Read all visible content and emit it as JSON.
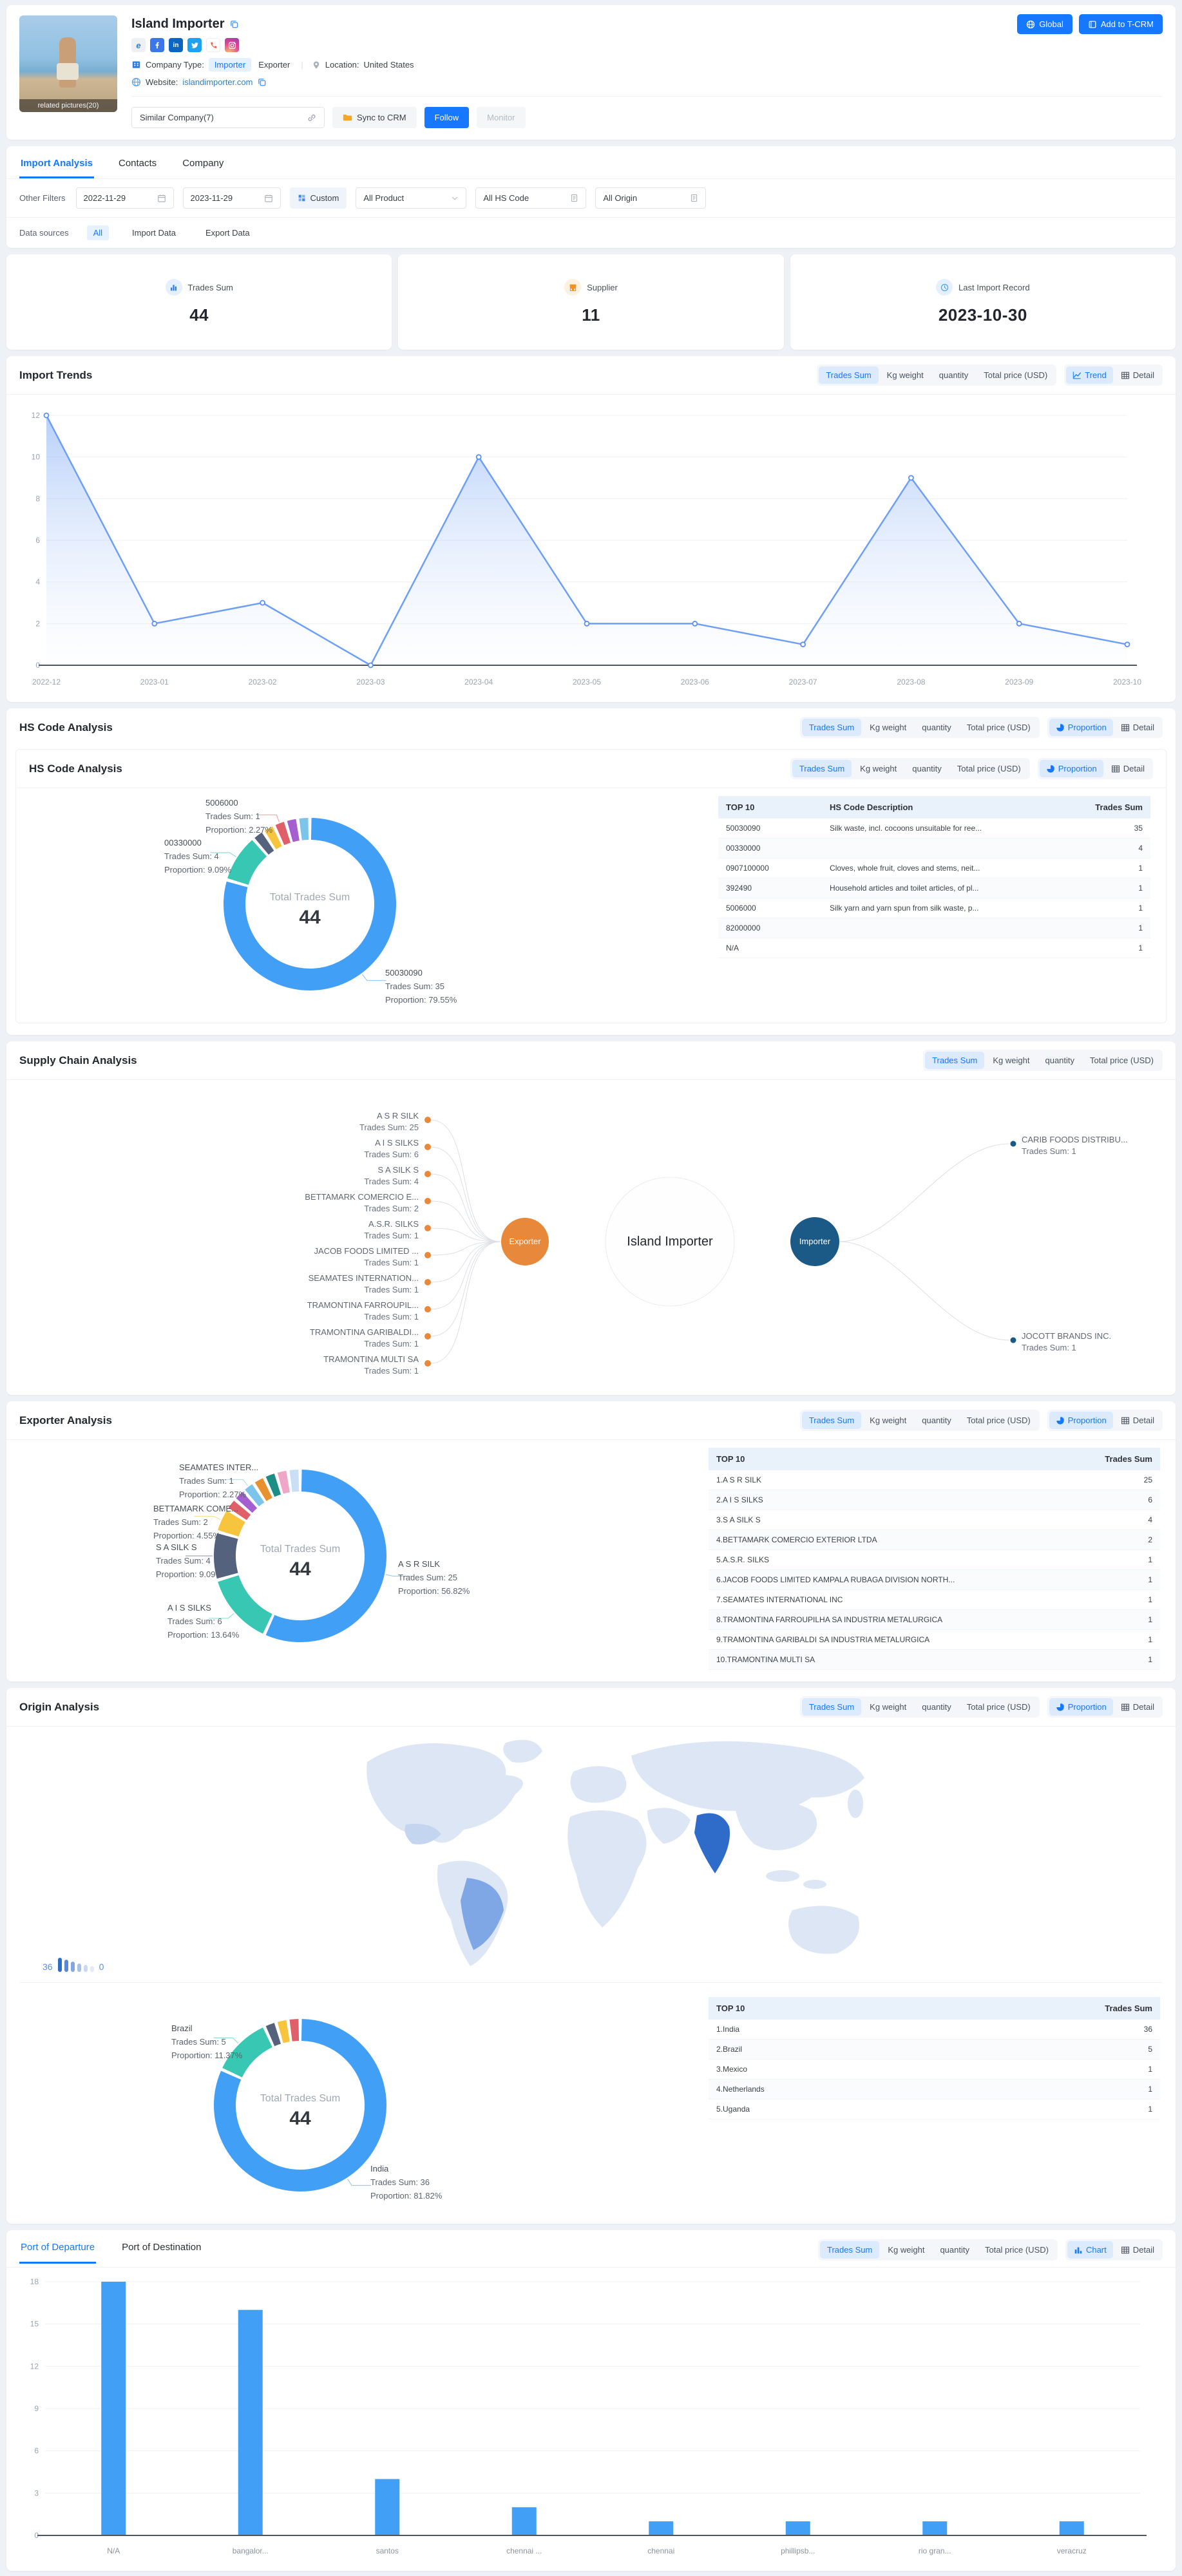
{
  "header": {
    "company_name": "Island Importer",
    "photo_caption": "related pictures(20)",
    "company_type_label": "Company Type:",
    "company_type_importer": "Importer",
    "company_type_exporter": "Exporter",
    "location_label": "Location:",
    "location": "United States",
    "website_label": "Website:",
    "website": "islandimporter.com",
    "similar_company": "Similar Company(7)",
    "sync_to_crm": "Sync to CRM",
    "follow": "Follow",
    "monitor": "Monitor",
    "global_btn": "Global",
    "add_to_tcrm_btn": "Add to T-CRM",
    "social_icons": [
      "website-icon",
      "facebook-icon",
      "linkedin-icon",
      "twitter-icon",
      "phone-icon",
      "instagram-icon"
    ]
  },
  "tabs": [
    "Import Analysis",
    "Contacts",
    "Company"
  ],
  "filters": {
    "other_filters_label": "Other Filters",
    "date_from": "2022-11-29",
    "date_to": "2023-11-29",
    "custom": "Custom",
    "all_product": "All Product",
    "all_hs_code": "All HS Code",
    "all_origin": "All Origin",
    "data_sources_label": "Data sources",
    "data_sources": [
      "All",
      "Import Data",
      "Export Data"
    ]
  },
  "stats": [
    {
      "label": "Trades Sum",
      "value": "44"
    },
    {
      "label": "Supplier",
      "value": "11"
    },
    {
      "label": "Last Import Record",
      "value": "2023-10-30"
    }
  ],
  "metric_buttons": [
    "Trades Sum",
    "Kg weight",
    "quantity",
    "Total price (USD)"
  ],
  "view_labels": {
    "trend": "Trend",
    "detail": "Detail",
    "proportion": "Proportion",
    "chart": "Chart"
  },
  "sections": {
    "import_trends": {
      "title": "Import Trends"
    },
    "hs_code": {
      "title": "HS Code Analysis"
    },
    "supply_chain": {
      "title": "Supply Chain Analysis"
    },
    "exporter": {
      "title": "Exporter Analysis"
    },
    "origin": {
      "title": "Origin Analysis"
    }
  },
  "port_tabs": [
    "Port of Departure",
    "Port of Destination"
  ],
  "labels": {
    "trades_sum_prefix": "Trades Sum: ",
    "proportion_prefix": "Proportion: "
  },
  "map_legend": {
    "max": "36",
    "min": "0"
  },
  "supply_chain": {
    "exporter_node": "Exporter",
    "importer_node": "Importer",
    "center": "Island Importer",
    "left": [
      {
        "name": "A S R SILK",
        "value": 25
      },
      {
        "name": "A I S SILKS",
        "value": 6
      },
      {
        "name": "S A SILK S",
        "value": 4
      },
      {
        "name": "BETTAMARK COMERCIO E...",
        "value": 2
      },
      {
        "name": "A.S.R. SILKS",
        "value": 1
      },
      {
        "name": "JACOB FOODS LIMITED ...",
        "value": 1
      },
      {
        "name": "SEAMATES INTERNATION...",
        "value": 1
      },
      {
        "name": "TRAMONTINA FARROUPIL...",
        "value": 1
      },
      {
        "name": "TRAMONTINA GARIBALDI...",
        "value": 1
      },
      {
        "name": "TRAMONTINA MULTI SA",
        "value": 1
      }
    ],
    "right": [
      {
        "name": "CARIB FOODS DISTRIBU...",
        "value": 1
      },
      {
        "name": "JOCOTT BRANDS INC.",
        "value": 1
      }
    ]
  },
  "hs_table": {
    "headers": [
      "TOP 10",
      "HS Code Description",
      "Trades Sum"
    ],
    "rows": [
      [
        "50030090",
        "Silk waste, incl. cocoons unsuitable for ree...",
        "35"
      ],
      [
        "00330000",
        "",
        "4"
      ],
      [
        "0907100000",
        "Cloves, whole fruit, cloves and stems, neit...",
        "1"
      ],
      [
        "392490",
        "Household articles and toilet articles, of pl...",
        "1"
      ],
      [
        "5006000",
        "Silk yarn and yarn spun from silk waste, p...",
        "1"
      ],
      [
        "82000000",
        "",
        "1"
      ],
      [
        "N/A",
        "",
        "1"
      ]
    ]
  },
  "exporter_table": {
    "headers": [
      "TOP 10",
      "Trades Sum"
    ],
    "rows": [
      [
        "1.A S R SILK",
        "25"
      ],
      [
        "2.A I S SILKS",
        "6"
      ],
      [
        "3.S A SILK S",
        "4"
      ],
      [
        "4.BETTAMARK COMERCIO EXTERIOR LTDA",
        "2"
      ],
      [
        "5.A.S.R. SILKS",
        "1"
      ],
      [
        "6.JACOB FOODS LIMITED KAMPALA RUBAGA DIVISION NORTH...",
        "1"
      ],
      [
        "7.SEAMATES INTERNATIONAL INC",
        "1"
      ],
      [
        "8.TRAMONTINA FARROUPILHA SA INDUSTRIA METALURGICA",
        "1"
      ],
      [
        "9.TRAMONTINA GARIBALDI SA INDUSTRIA METALURGICA",
        "1"
      ],
      [
        "10.TRAMONTINA MULTI SA",
        "1"
      ]
    ]
  },
  "origin_table": {
    "headers": [
      "TOP 10",
      "Trades Sum"
    ],
    "rows": [
      [
        "1.India",
        "36"
      ],
      [
        "2.Brazil",
        "5"
      ],
      [
        "3.Mexico",
        "1"
      ],
      [
        "4.Netherlands",
        "1"
      ],
      [
        "5.Uganda",
        "1"
      ]
    ]
  },
  "colors": {
    "primary": "#1677ff",
    "line": "#6e9ff7",
    "bar": "#41a0f5",
    "supply_exporter": "#e8883a",
    "supply_importer": "#1b5a86",
    "map_high": "#2f6bc9",
    "map_mid": "#7fa7e6",
    "map_base": "#dde6f4",
    "donut_palette": [
      "#41a0f5",
      "#38c7b2",
      "#55627d",
      "#f7c53d",
      "#e0606a",
      "#a45fd0",
      "#7cc4ea",
      "#e8912d",
      "#1d8d85",
      "#f0a6c6",
      "#c9dff5"
    ]
  },
  "chart_data": [
    {
      "id": "import_trends",
      "type": "line",
      "x": [
        "2022-12",
        "2023-01",
        "2023-02",
        "2023-03",
        "2023-04",
        "2023-05",
        "2023-06",
        "2023-07",
        "2023-08",
        "2023-09",
        "2023-10"
      ],
      "values": [
        12,
        2,
        3,
        0,
        10,
        2,
        2,
        1,
        9,
        2,
        1
      ],
      "ylim": [
        0,
        12
      ],
      "yticks": [
        0,
        2,
        4,
        6,
        8,
        10,
        12
      ],
      "grid": true,
      "legend_position": "none"
    },
    {
      "id": "hs_code",
      "type": "donut",
      "center_label": "Total Trades Sum",
      "center_value": "44",
      "slices": [
        {
          "name": "50030090",
          "value": 35,
          "proportion": "79.55%"
        },
        {
          "name": "00330000",
          "value": 4,
          "proportion": "9.09%"
        },
        {
          "name": "0907100000",
          "value": 1
        },
        {
          "name": "392490",
          "value": 1
        },
        {
          "name": "5006000",
          "value": 1,
          "proportion": "2.27%"
        },
        {
          "name": "82000000",
          "value": 1
        },
        {
          "name": "N/A",
          "value": 1
        }
      ]
    },
    {
      "id": "exporter",
      "type": "donut",
      "center_label": "Total Trades Sum",
      "center_value": "44",
      "slices": [
        {
          "name": "A S R SILK",
          "value": 25,
          "proportion": "56.82%"
        },
        {
          "name": "A I S SILKS",
          "value": 6,
          "proportion": "13.64%"
        },
        {
          "name": "S A SILK S",
          "value": 4,
          "proportion": "9.09%"
        },
        {
          "name": "BETTAMARK COME...",
          "value": 2,
          "proportion": "4.55%"
        },
        {
          "name": "A.S.R. SILKS",
          "value": 1
        },
        {
          "name": "JACOB FOODS LIMITED...",
          "value": 1
        },
        {
          "name": "SEAMATES INTER...",
          "value": 1,
          "proportion": "2.27%"
        },
        {
          "name": "TRAMONTINA FARROUPIL...",
          "value": 1
        },
        {
          "name": "TRAMONTINA GARIBALDI...",
          "value": 1
        },
        {
          "name": "TRAMONTINA MULTI SA",
          "value": 1
        },
        {
          "name": "",
          "value": 1
        }
      ]
    },
    {
      "id": "origin",
      "type": "donut",
      "center_label": "Total Trades Sum",
      "center_value": "44",
      "slices": [
        {
          "name": "India",
          "value": 36,
          "proportion": "81.82%"
        },
        {
          "name": "Brazil",
          "value": 5,
          "proportion": "11.37%"
        },
        {
          "name": "Mexico",
          "value": 1
        },
        {
          "name": "Netherlands",
          "value": 1
        },
        {
          "name": "Uganda",
          "value": 1
        }
      ]
    },
    {
      "id": "ports",
      "type": "bar",
      "categories": [
        "N/A",
        "bangalor...",
        "santos",
        "chennai ...",
        "chennai",
        "phillipsb...",
        "rio gran...",
        "veracruz"
      ],
      "values": [
        18,
        16,
        4,
        2,
        1,
        1,
        1,
        1
      ],
      "ylim": [
        0,
        18
      ],
      "yticks": [
        0,
        3,
        6,
        9,
        12,
        15,
        18
      ],
      "grid": true
    }
  ]
}
